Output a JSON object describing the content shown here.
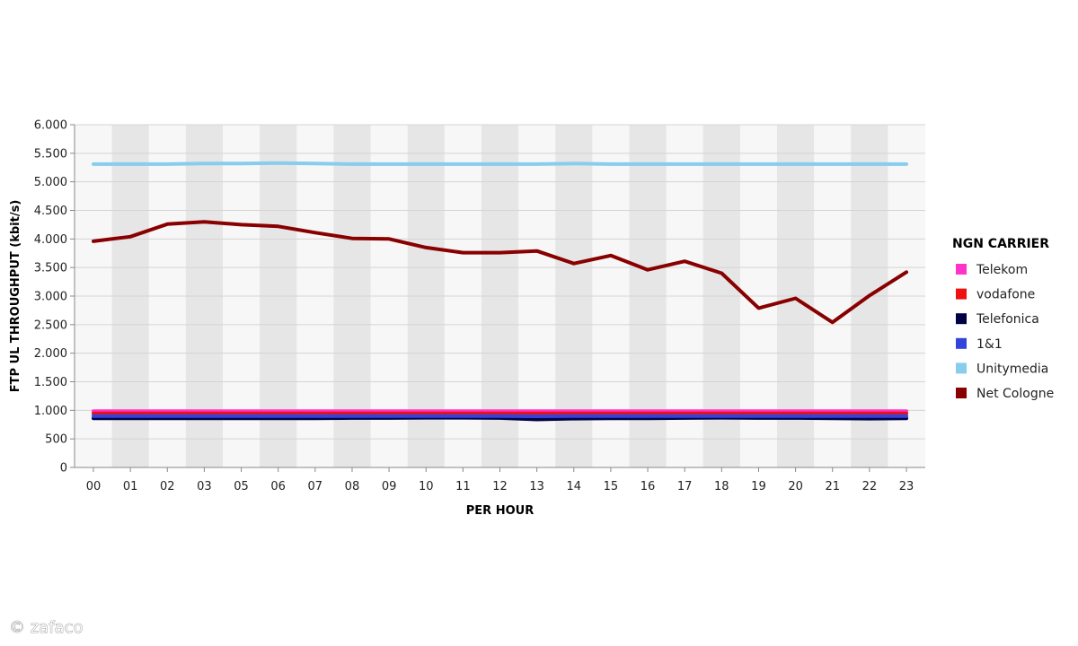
{
  "watermark": "© zafaco",
  "chart_data": {
    "type": "line",
    "categories": [
      "00",
      "01",
      "02",
      "03",
      "05",
      "06",
      "07",
      "08",
      "09",
      "10",
      "11",
      "12",
      "13",
      "14",
      "15",
      "16",
      "17",
      "18",
      "19",
      "20",
      "21",
      "22",
      "23"
    ],
    "xlabel": "PER HOUR",
    "ylabel": "FTP UL THROUGHPUT (kbit/s)",
    "ylim": [
      0,
      6000
    ],
    "yticks": [
      0,
      500,
      1000,
      1500,
      2000,
      2500,
      3000,
      3500,
      4000,
      4500,
      5000,
      5500,
      6000
    ],
    "ytick_labels": [
      "0",
      "500",
      "1.000",
      "1.500",
      "2.000",
      "2.500",
      "3.000",
      "3.500",
      "4.000",
      "4.500",
      "5.000",
      "5.500",
      "6.000"
    ],
    "grid": true,
    "alternating_column_shading": true,
    "legend": {
      "title": "NGN CARRIER",
      "position": "right"
    },
    "series": [
      {
        "name": "Telekom",
        "color": "#ff33cc",
        "values": [
          985,
          985,
          985,
          985,
          985,
          985,
          985,
          985,
          985,
          985,
          985,
          985,
          985,
          985,
          985,
          985,
          985,
          985,
          985,
          985,
          985,
          985,
          985
        ]
      },
      {
        "name": "vodafone",
        "color": "#ee1111",
        "values": [
          945,
          945,
          945,
          945,
          945,
          945,
          945,
          945,
          945,
          945,
          945,
          945,
          945,
          945,
          945,
          945,
          945,
          945,
          945,
          945,
          945,
          945,
          945
        ]
      },
      {
        "name": "Telefonica",
        "color": "#000044",
        "values": [
          860,
          860,
          860,
          860,
          860,
          860,
          860,
          865,
          865,
          870,
          870,
          865,
          840,
          855,
          860,
          860,
          865,
          870,
          865,
          865,
          860,
          855,
          860
        ]
      },
      {
        "name": "1&1",
        "color": "#3344dd",
        "values": [
          900,
          900,
          900,
          900,
          900,
          900,
          900,
          900,
          900,
          900,
          900,
          900,
          895,
          900,
          900,
          900,
          900,
          900,
          900,
          900,
          900,
          900,
          900
        ]
      },
      {
        "name": "Unitymedia",
        "color": "#88ccee",
        "values": [
          5310,
          5310,
          5310,
          5320,
          5320,
          5330,
          5320,
          5310,
          5310,
          5310,
          5310,
          5310,
          5310,
          5320,
          5310,
          5310,
          5310,
          5310,
          5310,
          5310,
          5310,
          5310,
          5310
        ]
      },
      {
        "name": "Net Cologne",
        "color": "#880000",
        "values": [
          3960,
          4040,
          4260,
          4300,
          4250,
          4220,
          4110,
          4010,
          4000,
          3850,
          3760,
          3760,
          3790,
          3570,
          3710,
          3460,
          3610,
          3400,
          2790,
          2960,
          2540,
          3010,
          3420
        ]
      }
    ]
  }
}
